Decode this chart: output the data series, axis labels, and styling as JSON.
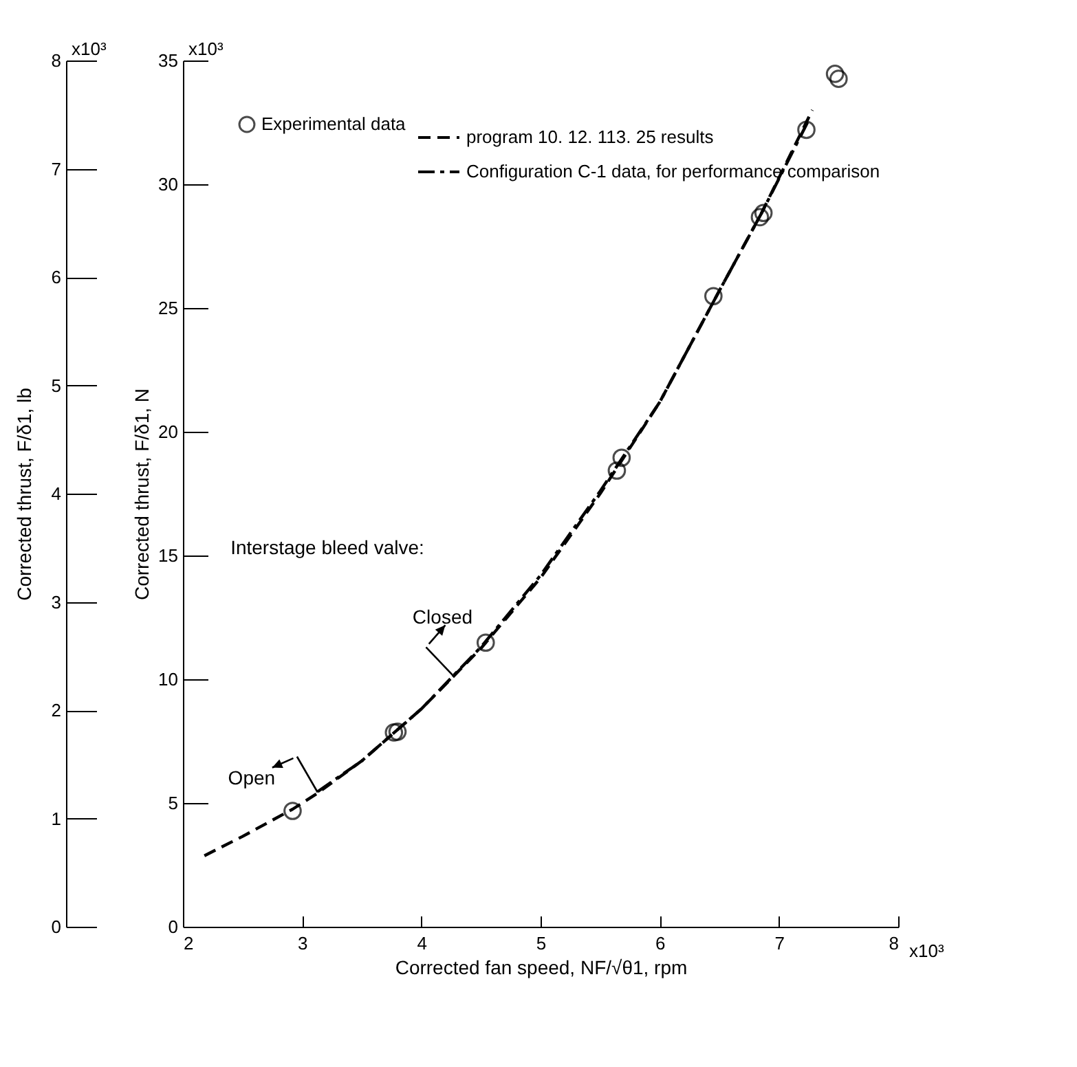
{
  "chart_data": {
    "type": "line",
    "xlabel": "Corrected fan speed, NF/√θ1, rpm",
    "ylabel": "Corrected thrust, F/δ1, N",
    "y2label": "Corrected thrust, F/δ1, lb",
    "xlim": [
      2,
      8
    ],
    "xticks": [
      2,
      3,
      4,
      5,
      6,
      7,
      8
    ],
    "ylim": [
      0,
      35
    ],
    "yticks": [
      0,
      5,
      10,
      15,
      20,
      25,
      30,
      35
    ],
    "y2lim": [
      0,
      8
    ],
    "y2ticks": [
      0,
      1,
      2,
      3,
      4,
      5,
      6,
      7,
      8
    ],
    "series": [
      {
        "name": "Experimental data",
        "type": "scatter",
        "marker": "circle",
        "color": "#000000",
        "x": [
          2.92,
          3.77,
          3.8,
          4.54,
          5.64,
          5.68,
          6.45,
          6.84,
          6.87,
          7.23,
          7.47,
          7.5
        ],
        "values": [
          4.68,
          7.85,
          7.88,
          11.48,
          18.43,
          18.95,
          25.48,
          28.67,
          28.84,
          32.2,
          34.46,
          34.26
        ]
      },
      {
        "name": "program 10. 12. 113. 25 results",
        "line_style": "dashed",
        "color": "#000000",
        "x": [
          2.18,
          2.5,
          2.92,
          3.13,
          3.5,
          4.0,
          4.5,
          5.0,
          5.5,
          6.0,
          6.5,
          6.85,
          7.28
        ],
        "values": [
          2.87,
          3.65,
          4.75,
          5.4,
          6.7,
          8.8,
          11.25,
          14.1,
          17.5,
          21.2,
          25.7,
          28.8,
          33.0
        ]
      },
      {
        "name": "Configuration C-1 data, for performance comparison",
        "line_style": "dashdot",
        "color": "#000000",
        "x": [
          3.13,
          3.5,
          4.0,
          4.5,
          5.0,
          5.5,
          6.0,
          6.5,
          6.85,
          7.25
        ],
        "values": [
          5.46,
          6.7,
          8.8,
          11.3,
          14.2,
          17.6,
          21.2,
          25.7,
          28.8,
          32.6
        ]
      }
    ],
    "annotations": [
      "Interstage bleed valve:",
      "x10³",
      "x10³",
      "x10³",
      {
        "text": "Open",
        "x": 3.13,
        "y": 5.43
      },
      {
        "text": "Closed",
        "x": 4.27,
        "y": 10.13
      }
    ],
    "legend": "top left",
    "grid": false
  }
}
